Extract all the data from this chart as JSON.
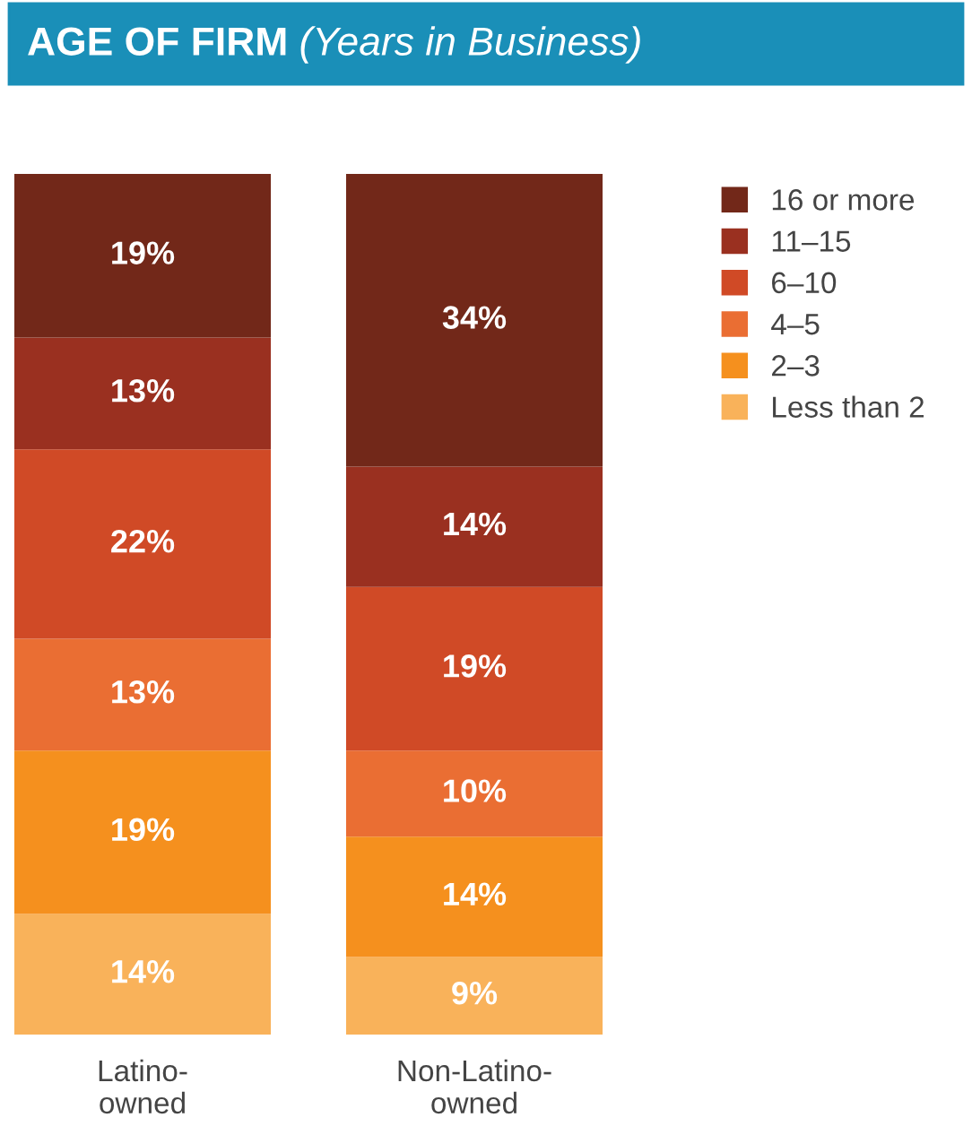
{
  "chart_data": {
    "type": "bar",
    "stacked": true,
    "title": "AGE OF FIRM",
    "subtitle": "(Years in Business)",
    "categories": [
      "Latino-owned",
      "Non-Latino-owned"
    ],
    "ylim": [
      0,
      100
    ],
    "tick_labels": "x",
    "grid": false,
    "legend": "right",
    "series": [
      {
        "name": "Less than 2",
        "color": "#f9b25a",
        "values": [
          14,
          9
        ],
        "value_labels": [
          "14%",
          "9%"
        ]
      },
      {
        "name": "2–3",
        "color": "#f5901e",
        "values": [
          19,
          14
        ],
        "value_labels": [
          "19%",
          "14%"
        ]
      },
      {
        "name": "4–5",
        "color": "#ea6e33",
        "values": [
          13,
          10
        ],
        "value_labels": [
          "13%",
          "10%"
        ]
      },
      {
        "name": "6–10",
        "color": "#d04a26",
        "values": [
          22,
          19
        ],
        "value_labels": [
          "22%",
          "19%"
        ]
      },
      {
        "name": "11–15",
        "color": "#9a3020",
        "values": [
          13,
          14
        ],
        "value_labels": [
          "13%",
          "14%"
        ]
      },
      {
        "name": "16 or more",
        "color": "#722819",
        "values": [
          19,
          34
        ],
        "value_labels": [
          "19%",
          "34%"
        ]
      }
    ]
  }
}
